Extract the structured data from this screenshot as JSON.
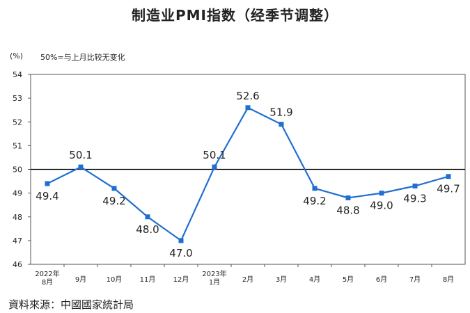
{
  "page": {
    "title": "制造业PMI指数（经季节调整）",
    "unit": "(%)",
    "note": "50%=与上月比较无变化",
    "source": "資料來源：中國國家統計局"
  },
  "chart_data": {
    "type": "line",
    "categories": [
      [
        "2022年",
        "8月"
      ],
      [
        "9月"
      ],
      [
        "10月"
      ],
      [
        "11月"
      ],
      [
        "12月"
      ],
      [
        "2023年",
        "1月"
      ],
      [
        "2月"
      ],
      [
        "3月"
      ],
      [
        "4月"
      ],
      [
        "5月"
      ],
      [
        "6月"
      ],
      [
        "7月"
      ],
      [
        "8月"
      ]
    ],
    "values": [
      49.4,
      50.1,
      49.2,
      48.0,
      47.0,
      50.1,
      52.6,
      51.9,
      49.2,
      48.8,
      49.0,
      49.3,
      49.7
    ],
    "data_labels": [
      "49.4",
      "50.1",
      "49.2",
      "48.0",
      "47.0",
      "50.1",
      "52.6",
      "51.9",
      "49.2",
      "48.8",
      "49.0",
      "49.3",
      "49.7"
    ],
    "label_position": [
      "below",
      "above",
      "below",
      "below",
      "below",
      "above",
      "above",
      "above",
      "below",
      "below",
      "below",
      "below",
      "below"
    ],
    "ylim": [
      46,
      54
    ],
    "yticks": [
      "46",
      "47",
      "48",
      "49",
      "50",
      "51",
      "52",
      "53",
      "54"
    ],
    "reference_line": 50,
    "line_color": "#1f6fd1",
    "reference_color": "#000000",
    "grid": false,
    "legend": "none"
  }
}
